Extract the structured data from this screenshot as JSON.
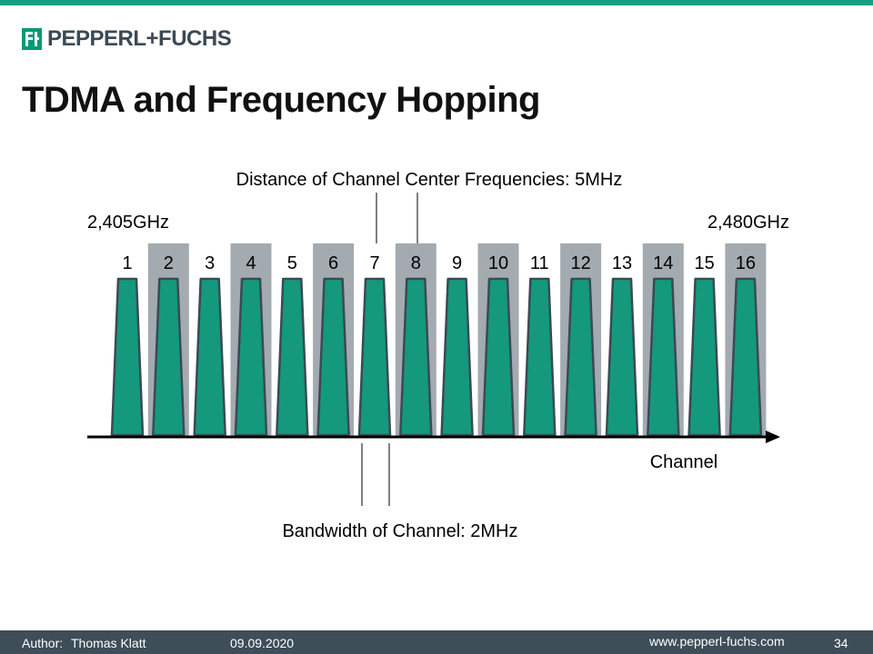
{
  "header": {
    "logo_text": "PEPPERL+FUCHS",
    "title": "TDMA and Frequency Hopping"
  },
  "diagram": {
    "channels": [
      "1",
      "2",
      "3",
      "4",
      "5",
      "6",
      "7",
      "8",
      "9",
      "10",
      "11",
      "12",
      "13",
      "14",
      "15",
      "16"
    ],
    "start_freq_label": "2,405GHz",
    "end_freq_label": "2,480GHz",
    "spacing_label": "Distance of Channel Center Frequencies: 5MHz",
    "bandwidth_label": "Bandwidth of Channel: 2MHz",
    "axis_label": "Channel",
    "colors": {
      "channel_fill": "#14997d",
      "channel_stroke": "#3a4a55",
      "band_shade": "#a3aab0"
    }
  },
  "footer": {
    "author_label": "Author:",
    "author": "Thomas Klatt",
    "date": "09.09.2020",
    "url": "www.pepperl-fuchs.com",
    "page": "34"
  }
}
